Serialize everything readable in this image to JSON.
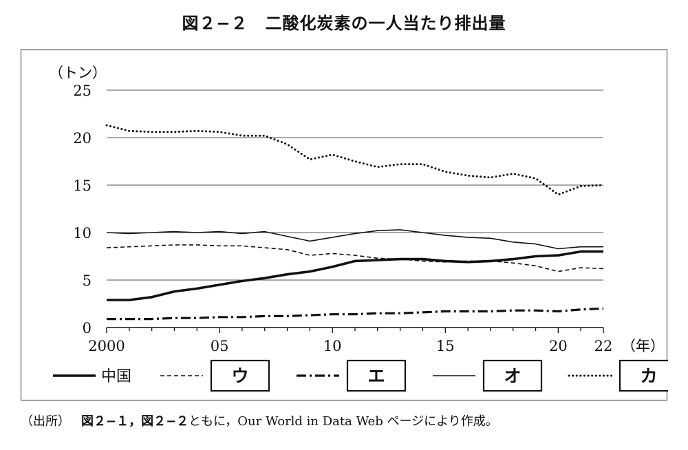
{
  "title": "図２−２　二酸化炭素の一人当たり排出量",
  "chart_data": {
    "type": "line",
    "ylabel": "（トン）",
    "xunit": "（年）",
    "ylim": [
      0,
      25
    ],
    "yticks": [
      0,
      5,
      10,
      15,
      20,
      25
    ],
    "xlim": [
      2000,
      2022
    ],
    "xticks": [
      {
        "value": 2000,
        "label": "2000"
      },
      {
        "value": 2005,
        "label": "05"
      },
      {
        "value": 2010,
        "label": "10"
      },
      {
        "value": 2015,
        "label": "15"
      },
      {
        "value": 2020,
        "label": "20"
      },
      {
        "value": 2022,
        "label": "22"
      }
    ],
    "grid": true,
    "legend_position": "bottom",
    "x": [
      2000,
      2001,
      2002,
      2003,
      2004,
      2005,
      2006,
      2007,
      2008,
      2009,
      2010,
      2011,
      2012,
      2013,
      2014,
      2015,
      2016,
      2017,
      2018,
      2019,
      2020,
      2021,
      2022
    ],
    "series": [
      {
        "name": "中国",
        "style": "solid-thick",
        "values": [
          2.9,
          2.9,
          3.2,
          3.8,
          4.1,
          4.5,
          4.9,
          5.2,
          5.6,
          5.9,
          6.4,
          7.0,
          7.1,
          7.2,
          7.2,
          7.0,
          6.9,
          7.0,
          7.2,
          7.5,
          7.6,
          8.0,
          8.0
        ]
      },
      {
        "name": "ウ",
        "style": "dashed",
        "boxed": true,
        "values": [
          8.4,
          8.5,
          8.6,
          8.7,
          8.7,
          8.6,
          8.6,
          8.4,
          8.2,
          7.6,
          7.8,
          7.6,
          7.3,
          7.2,
          7.0,
          6.9,
          7.0,
          7.0,
          6.8,
          6.5,
          5.9,
          6.3,
          6.2
        ]
      },
      {
        "name": "エ",
        "style": "dash-dot",
        "boxed": true,
        "values": [
          0.9,
          0.9,
          0.9,
          1.0,
          1.0,
          1.1,
          1.1,
          1.2,
          1.2,
          1.3,
          1.4,
          1.4,
          1.5,
          1.5,
          1.6,
          1.7,
          1.7,
          1.7,
          1.8,
          1.8,
          1.7,
          1.9,
          2.0
        ]
      },
      {
        "name": "オ",
        "style": "solid-thin",
        "boxed": true,
        "values": [
          10.0,
          9.9,
          10.0,
          10.1,
          10.0,
          10.1,
          9.9,
          10.1,
          9.6,
          9.1,
          9.5,
          9.9,
          10.2,
          10.3,
          10.0,
          9.7,
          9.5,
          9.4,
          9.0,
          8.8,
          8.3,
          8.5,
          8.5
        ]
      },
      {
        "name": "カ",
        "style": "dotted",
        "boxed": true,
        "values": [
          21.3,
          20.7,
          20.6,
          20.6,
          20.7,
          20.6,
          20.2,
          20.2,
          19.3,
          17.7,
          18.2,
          17.5,
          16.9,
          17.2,
          17.2,
          16.4,
          16.0,
          15.8,
          16.2,
          15.7,
          14.0,
          14.9,
          15.0
        ]
      }
    ]
  },
  "source": {
    "label": "（出所）",
    "refs": "図２−１，図２−２",
    "text": "ともに，Our World in Data Web ページにより作成。"
  }
}
